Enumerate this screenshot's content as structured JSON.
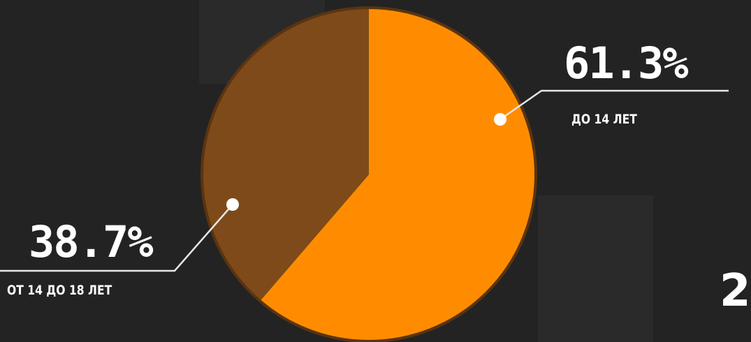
{
  "chart_data": {
    "type": "pie",
    "slices": [
      {
        "label": "ДО 14 ЛЕТ",
        "value": 61.3,
        "value_label": "61.3%",
        "color": "#ff8c00"
      },
      {
        "label": "ОТ 14 ДО 18 ЛЕТ",
        "value": 38.7,
        "value_label": "38.7%",
        "color": "#7e4a1a"
      }
    ],
    "outline_color": "#5a3410",
    "background_color": "#232323"
  },
  "edge_text": "2"
}
